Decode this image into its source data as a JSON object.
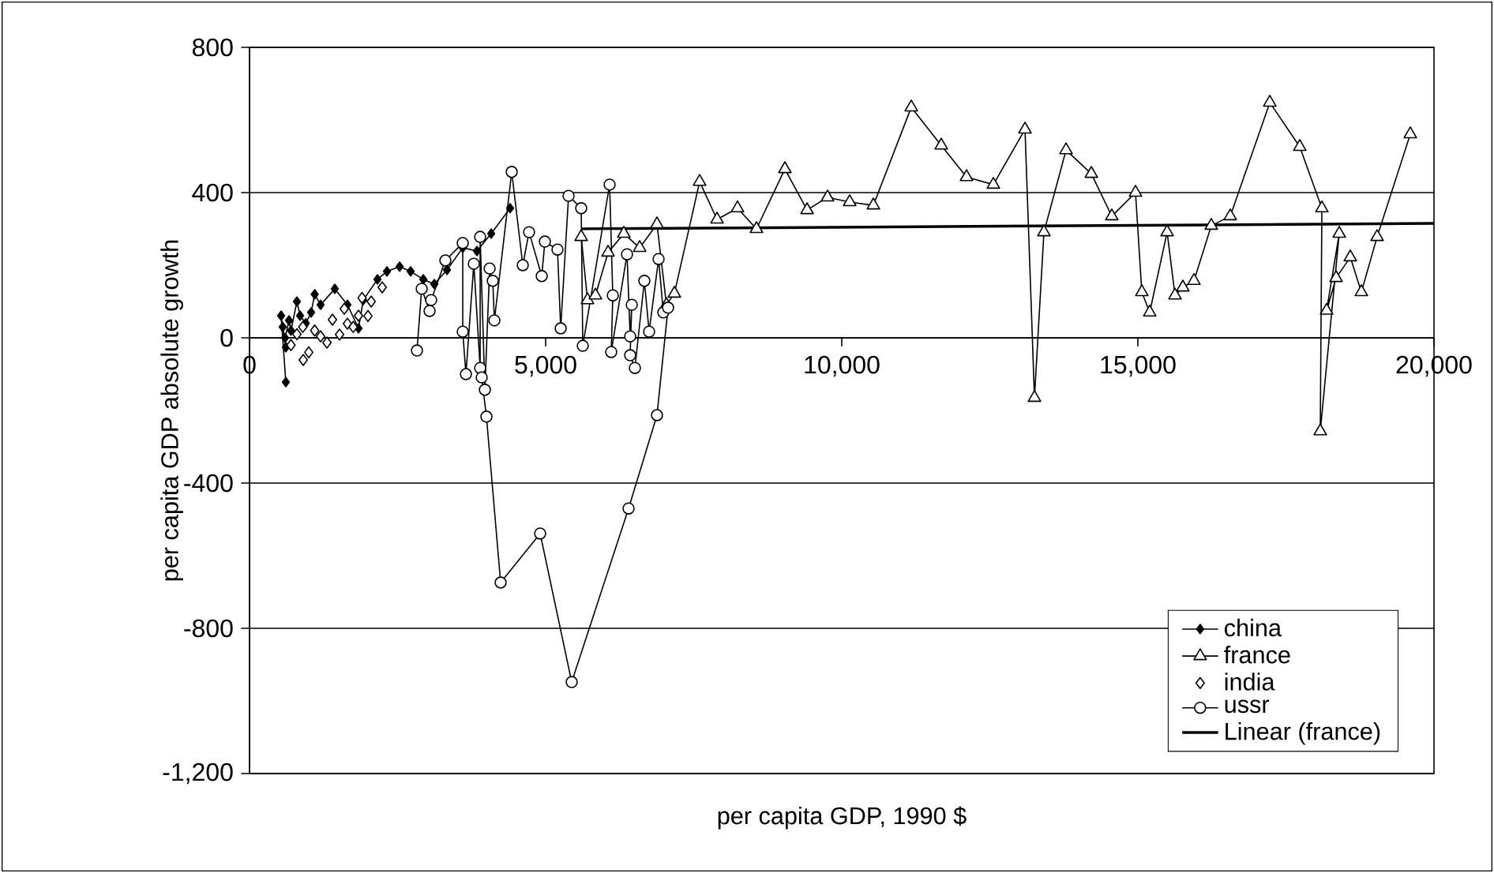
{
  "chart_data": {
    "type": "line",
    "xlabel": "per capita GDP, 1990 $",
    "ylabel": "per capita GDP absolute growth",
    "xlim": [
      0,
      20000
    ],
    "ylim": [
      -1200,
      800
    ],
    "xticks": [
      0,
      {
        "value": 5000,
        "label": "5,000"
      },
      {
        "value": 10000,
        "label": "10,000"
      },
      {
        "value": 15000,
        "label": "15,000"
      },
      {
        "value": 20000,
        "label": "20,000"
      }
    ],
    "yticks": [
      {
        "value": -1200,
        "label": "-1,200"
      },
      -800,
      -400,
      0,
      400,
      800
    ],
    "grid": "y",
    "legend": "bottom right",
    "series": [
      {
        "name": "china",
        "color": "#000000",
        "marker": "diamond",
        "x": [
          613,
          533,
          560,
          613,
          600,
          667,
          700,
          800,
          853,
          950,
          1040,
          1100,
          1200,
          1440,
          1653,
          1840,
          1920,
          2160,
          2320,
          2534,
          2720,
          2934,
          3120,
          3334,
          3600,
          3840,
          4080,
          4400
        ],
        "values": [
          -122,
          61,
          30,
          -26,
          0,
          48,
          20,
          100,
          61,
          40,
          70,
          120,
          91,
          135,
          91,
          26,
          104,
          161,
          183,
          196,
          183,
          161,
          148,
          187,
          248,
          239,
          287,
          357
        ]
      },
      {
        "name": "france",
        "color": "#000000",
        "marker": "triangle",
        "x": [
          5600,
          5707,
          5840,
          6054,
          6320,
          6587,
          6880,
          7040,
          7174,
          7600,
          7894,
          8240,
          8560,
          9040,
          9414,
          9760,
          10134,
          10534,
          11174,
          11680,
          12107,
          12560,
          13094,
          13254,
          13414,
          13787,
          14214,
          14560,
          14960,
          15067,
          15200,
          15494,
          15627,
          15760,
          15947,
          16240,
          16560,
          17228,
          17734,
          18107,
          18080,
          18400,
          18187,
          18347,
          18587,
          18774,
          19040,
          19600
        ],
        "values": [
          278,
          104,
          117,
          235,
          287,
          248,
          313,
          91,
          122,
          430,
          326,
          357,
          300,
          465,
          352,
          387,
          374,
          365,
          635,
          530,
          443,
          422,
          574,
          -165,
          291,
          517,
          452,
          335,
          400,
          126,
          70,
          291,
          117,
          139,
          157,
          309,
          335,
          648,
          526,
          357,
          -257,
          287,
          75,
          165,
          222,
          126,
          278,
          561
        ]
      },
      {
        "name": "india",
        "color": "#000000",
        "type": "scatter",
        "marker": "diamond",
        "x": [
          700,
          800,
          907,
          900,
          1000,
          1100,
          1200,
          1307,
          1400,
          1520,
          1600,
          1653,
          1750,
          1840,
          1900,
          2000,
          2054,
          2240
        ],
        "values": [
          -20,
          10,
          -61,
          30,
          -40,
          20,
          4,
          -13,
          50,
          9,
          80,
          39,
          30,
          61,
          110,
          60,
          100,
          139
        ]
      },
      {
        "name": "ussr",
        "color": "#000000",
        "marker": "circle",
        "x": [
          2827,
          2907,
          3040,
          3067,
          3307,
          3600,
          3600,
          3654,
          3787,
          3894,
          3894,
          3974,
          4054,
          4107,
          4134,
          4427,
          4614,
          4720,
          4934,
          4987,
          5200,
          5254,
          5387,
          5600,
          5627,
          6080,
          6134,
          6107,
          6374,
          6427,
          6454,
          6427,
          6507,
          6667,
          6747,
          6907,
          6987,
          7067,
          6880,
          6400,
          5440,
          4907,
          4240,
          4000,
          3920
        ],
        "values": [
          -35,
          135,
          74,
          104,
          213,
          261,
          17,
          -100,
          204,
          -83,
          278,
          -143,
          191,
          157,
          48,
          457,
          200,
          291,
          170,
          265,
          243,
          26,
          391,
          357,
          -22,
          422,
          117,
          -39,
          230,
          4,
          91,
          -48,
          -83,
          157,
          17,
          217,
          70,
          83,
          -213,
          -470,
          -948,
          -539,
          -674,
          -217,
          -109
        ]
      },
      {
        "name": "Linear (france)",
        "color": "#000000",
        "marker": "none",
        "x": [
          5600,
          20000
        ],
        "values": [
          300,
          315
        ]
      }
    ]
  }
}
